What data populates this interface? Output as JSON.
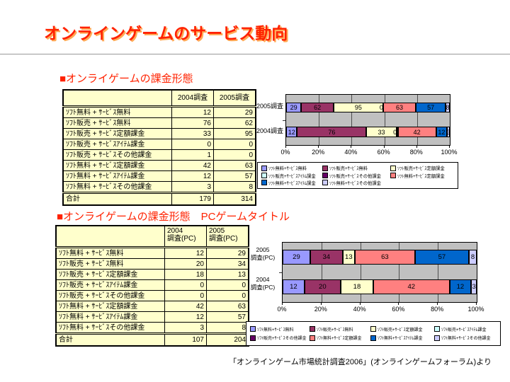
{
  "slide": {
    "title": "オンラインゲームのサービス動向",
    "source_note": "「オンラインゲーム市場統計調査2006」(オンラインゲームフォーラム)より"
  },
  "colors": {
    "heading_red": "#FF2200",
    "title_shadow": "#FFAA55",
    "table_bg": "#FFFFCC"
  },
  "chart_style": {
    "plot_bg": "#C0C0C0",
    "gridline": "#4D4D4D"
  },
  "section1": {
    "heading": "■オンライゲームの課金形態",
    "table": {
      "col_headers": [
        "2004調査",
        "2005調査"
      ],
      "rows": [
        {
          "label": "ｿﾌﾄ無料 + ｻｰﾋﾞｽ無料",
          "values": [
            12,
            29
          ]
        },
        {
          "label": "ｿﾌﾄ販売 + ｻｰﾋﾞｽ無料",
          "values": [
            76,
            62
          ]
        },
        {
          "label": "ｿﾌﾄ販売 + ｻｰﾋﾞｽ定額課金",
          "values": [
            33,
            95
          ]
        },
        {
          "label": "ｿﾌﾄ販売 + ｻｰﾋﾞｽｱｲﾃﾑ課金",
          "values": [
            0,
            0
          ]
        },
        {
          "label": "ｿﾌﾄ販売 + ｻｰﾋﾞｽその他課金",
          "values": [
            1,
            0
          ]
        },
        {
          "label": "ｿﾌﾄ無料 + ｻｰﾋﾞｽ定額課金",
          "values": [
            42,
            63
          ]
        },
        {
          "label": "ｿﾌﾄ無料 + ｻｰﾋﾞｽｱｲﾃﾑ課金",
          "values": [
            12,
            57
          ]
        },
        {
          "label": "ｿﾌﾄ無料 + ｻｰﾋﾞｽその他課金",
          "values": [
            3,
            8
          ]
        }
      ],
      "total": {
        "label": "合計",
        "values": [
          179,
          314
        ]
      }
    }
  },
  "section2": {
    "heading": "■オンライゲームの課金形態　PCゲームタイトル",
    "table": {
      "col_headers": [
        "2004\n調査(PC)",
        "2005\n調査(PC)"
      ],
      "rows": [
        {
          "label": "ｿﾌﾄ無料 + ｻｰﾋﾞｽ無料",
          "values": [
            12,
            29
          ]
        },
        {
          "label": "ｿﾌﾄ販売 + ｻｰﾋﾞｽ無料",
          "values": [
            20,
            34
          ]
        },
        {
          "label": "ｿﾌﾄ販売 + ｻｰﾋﾞｽ定額課金",
          "values": [
            18,
            13
          ]
        },
        {
          "label": "ｿﾌﾄ販売 + ｻｰﾋﾞｽｱｲﾃﾑ課金",
          "values": [
            0,
            0
          ]
        },
        {
          "label": "ｿﾌﾄ販売 + ｻｰﾋﾞｽその他課金",
          "values": [
            0,
            0
          ]
        },
        {
          "label": "ｿﾌﾄ無料 + ｻｰﾋﾞｽ定額課金",
          "values": [
            42,
            63
          ]
        },
        {
          "label": "ｿﾌﾄ無料 + ｻｰﾋﾞｽｱｲﾃﾑ課金",
          "values": [
            12,
            57
          ]
        },
        {
          "label": "ｿﾌﾄ無料 + ｻｰﾋﾞｽその他課金",
          "values": [
            3,
            8
          ]
        }
      ],
      "total": {
        "label": "合計",
        "values": [
          107,
          204
        ]
      }
    }
  },
  "chart_data": [
    {
      "type": "bar",
      "subtype": "horizontal-100%-stacked",
      "x_ticks": [
        "0%",
        "20%",
        "40%",
        "60%",
        "80%",
        "100%"
      ],
      "xlim": [
        0,
        100
      ],
      "grid": true,
      "legend_position": "bottom",
      "legend_columns": 3,
      "series_names": [
        "ｿﾌﾄ無料+ｻｰﾋﾞｽ無料",
        "ｿﾌﾄ販売+ｻｰﾋﾞｽ無料",
        "ｿﾌﾄ販売+ｻｰﾋﾞｽ定額課金",
        "ｿﾌﾄ販売+ｻｰﾋﾞｽｱｲﾃﾑ課金",
        "ｿﾌﾄ販売+ｻｰﾋﾞｽその他課金",
        "ｿﾌﾄ無料+ｻｰﾋﾞｽ定額課金",
        "ｿﾌﾄ無料+ｻｰﾋﾞｽｱｲﾃﾑ課金",
        "ｿﾌﾄ無料+ｻｰﾋﾞｽその他課金"
      ],
      "colors": [
        "#9999FF",
        "#993366",
        "#FFFFCC",
        "#CCFFFF",
        "#660066",
        "#FF8080",
        "#0066CC",
        "#CCCCFF"
      ],
      "bars": [
        {
          "category": "2005調査",
          "total": 314,
          "values": [
            29,
            62,
            95,
            0,
            0,
            63,
            57,
            8
          ],
          "zero_labels_at": [
            3
          ]
        },
        {
          "category": "2004調査",
          "total": 179,
          "values": [
            12,
            76,
            33,
            0,
            1,
            42,
            12,
            3
          ],
          "zero_labels_at": [
            3
          ]
        }
      ]
    },
    {
      "type": "bar",
      "subtype": "horizontal-100%-stacked",
      "x_ticks": [
        "0%",
        "20%",
        "40%",
        "60%",
        "80%",
        "100%"
      ],
      "xlim": [
        0,
        100
      ],
      "grid": true,
      "legend_position": "bottom",
      "legend_columns": 4,
      "series_names": [
        "ｿﾌﾄ無料+ｻｰﾋﾞｽ無料",
        "ｿﾌﾄ販売+ｻｰﾋﾞｽ無料",
        "ｿﾌﾄ販売+ｻｰﾋﾞｽ定額課金",
        "ｿﾌﾄ販売+ｻｰﾋﾞｽｱｲﾃﾑ課金",
        "ｿﾌﾄ販売+ｻｰﾋﾞｽその他課金",
        "ｿﾌﾄ無料+ｻｰﾋﾞｽ定額課金",
        "ｿﾌﾄ無料+ｻｰﾋﾞｽｱｲﾃﾑ課金",
        "ｿﾌﾄ無料+ｻｰﾋﾞｽその他課金"
      ],
      "colors": [
        "#9999FF",
        "#993366",
        "#FFFFCC",
        "#CCFFFF",
        "#660066",
        "#FF8080",
        "#0066CC",
        "#CCCCFF"
      ],
      "bars": [
        {
          "category": "2005\n調査(PC)",
          "total": 204,
          "values": [
            29,
            34,
            13,
            0,
            0,
            63,
            57,
            8
          ],
          "zero_labels_at": []
        },
        {
          "category": "2004\n調査(PC)",
          "total": 107,
          "values": [
            12,
            20,
            18,
            0,
            0,
            42,
            12,
            3
          ],
          "zero_labels_at": []
        }
      ]
    }
  ]
}
